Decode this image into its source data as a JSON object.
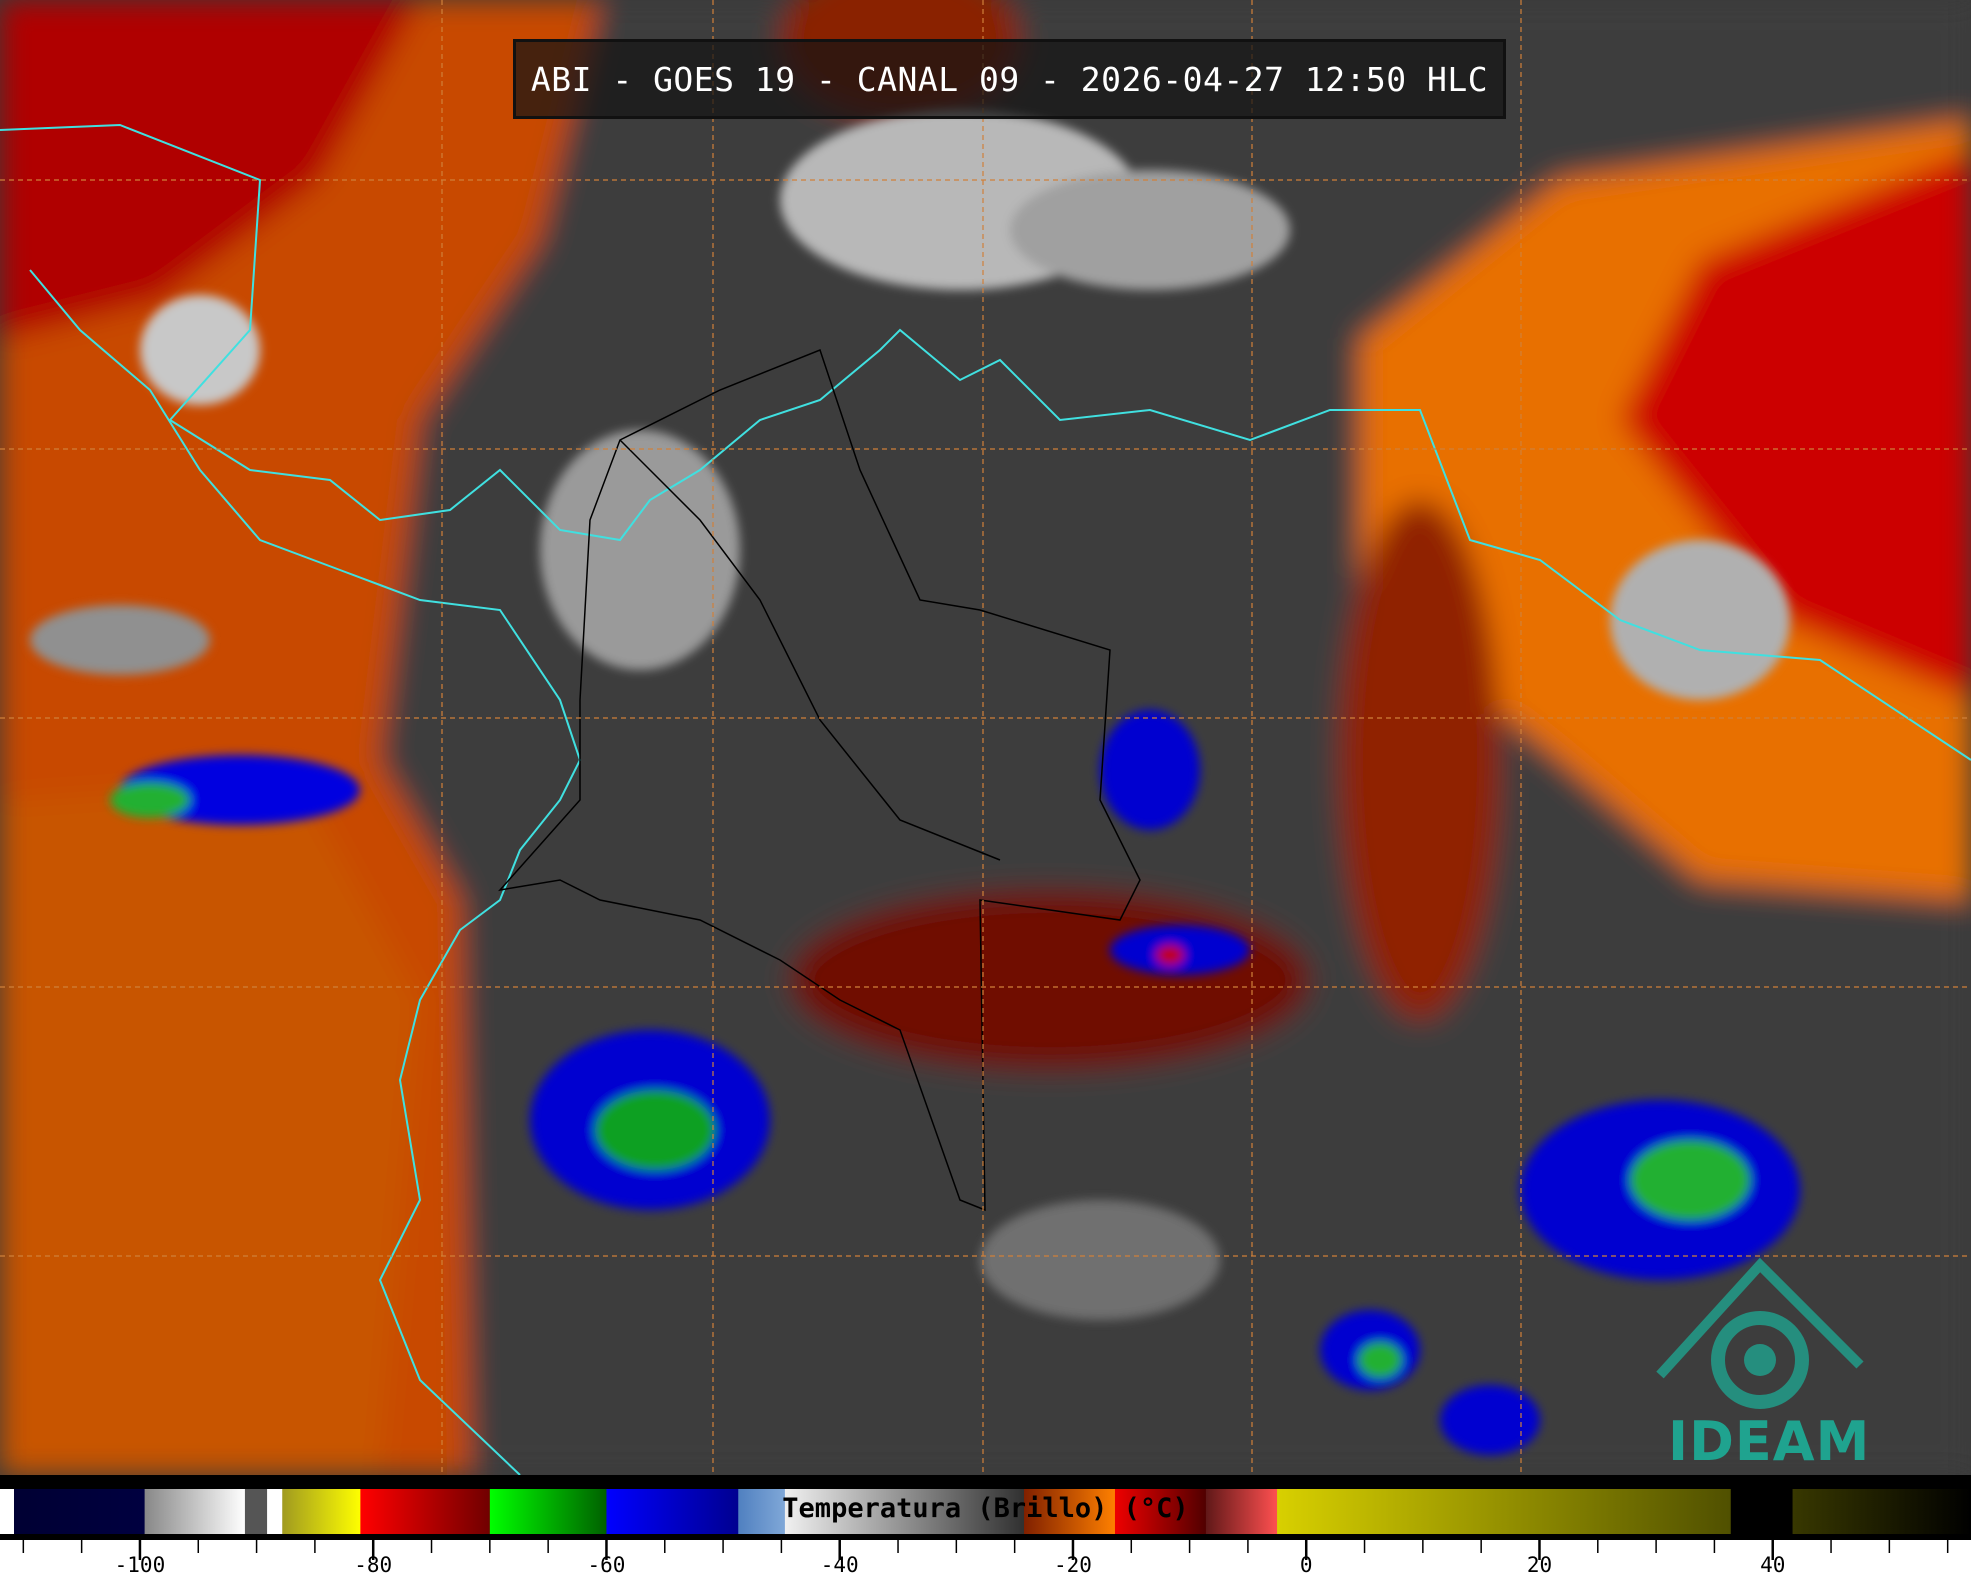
{
  "title": "ABI - GOES 19 - CANAL 09 - 2026-04-27 12:50 HLC",
  "colorbar": {
    "label": "Temperatura (Brillo) (°C)",
    "range": [
      -112,
      57
    ],
    "ticks": [
      -100,
      -80,
      -60,
      -40,
      -20,
      0,
      20,
      40
    ],
    "tick_labels": [
      "-100",
      "-80",
      "-60",
      "-40",
      "-20",
      "0",
      "20",
      "40"
    ],
    "segments": [
      {
        "from": -112,
        "to": -110.8,
        "colors": [
          "#ffffff",
          "#ffffff"
        ]
      },
      {
        "from": -110.8,
        "to": -99.6,
        "colors": [
          "#000033",
          "#000040"
        ]
      },
      {
        "from": -99.6,
        "to": -91,
        "colors": [
          "#888888",
          "#ffffff"
        ]
      },
      {
        "from": -91,
        "to": -89.1,
        "colors": [
          "#555555",
          "#555555"
        ]
      },
      {
        "from": -89.1,
        "to": -87.8,
        "colors": [
          "#ffffff",
          "#ffffff"
        ]
      },
      {
        "from": -87.8,
        "to": -81.1,
        "colors": [
          "#a09a20",
          "#ffff00"
        ]
      },
      {
        "from": -81.1,
        "to": -70,
        "colors": [
          "#ff0000",
          "#700000"
        ]
      },
      {
        "from": -70,
        "to": -60,
        "colors": [
          "#00ff00",
          "#006000"
        ]
      },
      {
        "from": -60,
        "to": -48.7,
        "colors": [
          "#0000ff",
          "#000090"
        ]
      },
      {
        "from": -48.7,
        "to": -44.7,
        "colors": [
          "#5080c0",
          "#80a8d8"
        ]
      },
      {
        "from": -44.7,
        "to": -24.2,
        "colors": [
          "#f0f0f0",
          "#303030"
        ]
      },
      {
        "from": -24.2,
        "to": -16.4,
        "colors": [
          "#802000",
          "#ff8000"
        ]
      },
      {
        "from": -16.4,
        "to": -8.6,
        "colors": [
          "#ee0000",
          "#500000"
        ]
      },
      {
        "from": -8.6,
        "to": -2.5,
        "colors": [
          "#601818",
          "#ff5050"
        ]
      },
      {
        "from": -2.5,
        "to": 36.4,
        "colors": [
          "#d8d000",
          "#505000"
        ]
      },
      {
        "from": 36.4,
        "to": 41.7,
        "colors": [
          "#000000",
          "#000000"
        ]
      },
      {
        "from": 41.7,
        "to": 57,
        "colors": [
          "#383800",
          "#000000"
        ]
      }
    ]
  },
  "logo": {
    "text": "IDEAM",
    "color": "#1fa38f"
  },
  "colors": {
    "coastline": "#40e0e0",
    "grid": "#d0803a",
    "borders": "#000000"
  }
}
